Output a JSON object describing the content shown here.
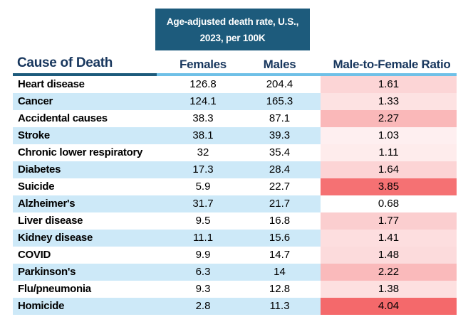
{
  "title_box": {
    "line1": "Age-adjusted death rate, U.S.,",
    "line2": "2023, per 100K"
  },
  "table": {
    "columns": [
      "Cause of Death",
      "Females",
      "Males",
      "Male-to-Female Ratio"
    ],
    "rows": [
      {
        "cause": "Heart disease",
        "females": "126.8",
        "males": "204.4",
        "ratio": "1.61"
      },
      {
        "cause": "Cancer",
        "females": "124.1",
        "males": "165.3",
        "ratio": "1.33"
      },
      {
        "cause": "Accidental causes",
        "females": "38.3",
        "males": "87.1",
        "ratio": "2.27"
      },
      {
        "cause": "Stroke",
        "females": "38.1",
        "males": "39.3",
        "ratio": "1.03"
      },
      {
        "cause": "Chronic lower respiratory",
        "females": "32",
        "males": "35.4",
        "ratio": "1.11"
      },
      {
        "cause": "Diabetes",
        "females": "17.3",
        "males": "28.4",
        "ratio": "1.64"
      },
      {
        "cause": "Suicide",
        "females": "5.9",
        "males": "22.7",
        "ratio": "3.85"
      },
      {
        "cause": "Alzheimer's",
        "females": "31.7",
        "males": "21.7",
        "ratio": "0.68"
      },
      {
        "cause": "Liver disease",
        "females": "9.5",
        "males": "16.8",
        "ratio": "1.77"
      },
      {
        "cause": "Kidney disease",
        "females": "11.1",
        "males": "15.6",
        "ratio": "1.41"
      },
      {
        "cause": "COVID",
        "females": "9.9",
        "males": "14.7",
        "ratio": "1.48"
      },
      {
        "cause": "Parkinson's",
        "females": "6.3",
        "males": "14",
        "ratio": "2.22"
      },
      {
        "cause": "Flu/pneumonia",
        "females": "9.3",
        "males": "12.8",
        "ratio": "1.38"
      },
      {
        "cause": "Homicide",
        "females": "2.8",
        "males": "11.3",
        "ratio": "4.04"
      }
    ]
  },
  "colors": {
    "teal": "#1D5B7C",
    "header_text": "#17365D",
    "row_alt_blue": "#CDE9F8",
    "underline_blue": "#6FC0E7",
    "ratio_min_value": 0.68,
    "ratio_max_value": 4.04,
    "ratio_min_color": "#FFFFFF",
    "ratio_max_color": "#F4696B"
  },
  "chart_data": {
    "type": "table",
    "title": "Age-adjusted death rate, U.S., 2023, per 100K",
    "columns": [
      "Cause of Death",
      "Females",
      "Males",
      "Male-to-Female Ratio"
    ],
    "rows": [
      [
        "Heart disease",
        126.8,
        204.4,
        1.61
      ],
      [
        "Cancer",
        124.1,
        165.3,
        1.33
      ],
      [
        "Accidental causes",
        38.3,
        87.1,
        2.27
      ],
      [
        "Stroke",
        38.1,
        39.3,
        1.03
      ],
      [
        "Chronic lower respiratory",
        32,
        35.4,
        1.11
      ],
      [
        "Diabetes",
        17.3,
        28.4,
        1.64
      ],
      [
        "Suicide",
        5.9,
        22.7,
        3.85
      ],
      [
        "Alzheimer's",
        31.7,
        21.7,
        0.68
      ],
      [
        "Liver disease",
        9.5,
        16.8,
        1.77
      ],
      [
        "Kidney disease",
        11.1,
        15.6,
        1.41
      ],
      [
        "COVID",
        9.9,
        14.7,
        1.48
      ],
      [
        "Parkinson's",
        6.3,
        14,
        2.22
      ],
      [
        "Flu/pneumonia",
        9.3,
        12.8,
        1.38
      ],
      [
        "Homicide",
        2.8,
        11.3,
        4.04
      ]
    ],
    "notes": "Male-to-Female Ratio column shaded on a white-to-red color scale by value"
  }
}
